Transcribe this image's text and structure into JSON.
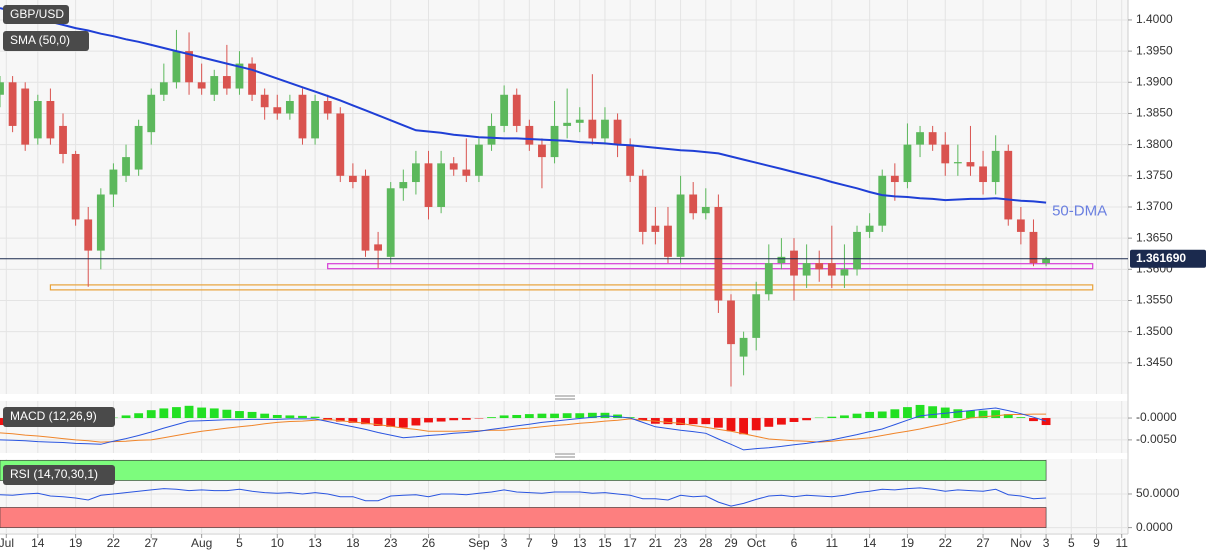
{
  "chart_data": [
    {
      "type": "candlestick",
      "title": "GBP/USD",
      "indicator": "SMA (50,0)",
      "annotation": "50-DMA",
      "xlim": [
        0,
        89.5
      ],
      "ylim": [
        1.34,
        1.4032
      ],
      "yticks": [
        {
          "value": 1.4,
          "label": "1.4000"
        },
        {
          "value": 1.395,
          "label": "1.3950"
        },
        {
          "value": 1.39,
          "label": "1.3900"
        },
        {
          "value": 1.385,
          "label": "1.3850"
        },
        {
          "value": 1.38,
          "label": "1.3800"
        },
        {
          "value": 1.375,
          "label": "1.3750"
        },
        {
          "value": 1.37,
          "label": "1.3700"
        },
        {
          "value": 1.365,
          "label": "1.3650"
        },
        {
          "value": 1.36,
          "label": "1.3600"
        },
        {
          "value": 1.355,
          "label": "1.3550"
        },
        {
          "value": 1.35,
          "label": "1.3500"
        },
        {
          "value": 1.345,
          "label": "1.3450"
        }
      ],
      "up_color": "#5cb85c",
      "down_color": "#d9534f",
      "grid": true,
      "open": [
        1.388,
        1.39,
        1.389,
        1.381,
        1.387,
        1.383,
        1.3785,
        1.368,
        1.363,
        1.372,
        1.375,
        1.376,
        1.382,
        1.388,
        1.39,
        1.395,
        1.39,
        1.388,
        1.391,
        1.389,
        1.393,
        1.388,
        1.386,
        1.385,
        1.388,
        1.381,
        1.387,
        1.385,
        1.375,
        1.375,
        1.364,
        1.362,
        1.373,
        1.374,
        1.377,
        1.37,
        1.377,
        1.376,
        1.375,
        1.38,
        1.383,
        1.388,
        1.383,
        1.38,
        1.378,
        1.383,
        1.3835,
        1.384,
        1.381,
        1.384,
        1.38,
        1.375,
        1.367,
        1.367,
        1.362,
        1.372,
        1.369,
        1.37,
        1.355,
        1.346,
        1.349,
        1.356,
        1.361,
        1.363,
        1.359,
        1.361,
        1.361,
        1.359,
        1.36,
        1.366,
        1.367,
        1.375,
        1.374,
        1.38,
        1.382,
        1.38,
        1.377,
        1.3772,
        1.3765,
        1.374,
        1.379,
        1.368,
        1.366,
        1.361
      ],
      "high": [
        1.391,
        1.391,
        1.39,
        1.388,
        1.389,
        1.385,
        1.379,
        1.37,
        1.373,
        1.377,
        1.38,
        1.384,
        1.389,
        1.393,
        1.3984,
        1.398,
        1.393,
        1.392,
        1.396,
        1.395,
        1.394,
        1.389,
        1.388,
        1.388,
        1.389,
        1.388,
        1.388,
        1.386,
        1.377,
        1.376,
        1.366,
        1.374,
        1.376,
        1.379,
        1.379,
        1.379,
        1.378,
        1.381,
        1.381,
        1.385,
        1.3895,
        1.389,
        1.384,
        1.381,
        1.387,
        1.389,
        1.386,
        1.3913,
        1.386,
        1.385,
        1.381,
        1.376,
        1.37,
        1.37,
        1.375,
        1.374,
        1.373,
        1.372,
        1.356,
        1.35,
        1.358,
        1.364,
        1.365,
        1.365,
        1.364,
        1.363,
        1.367,
        1.364,
        1.367,
        1.369,
        1.376,
        1.377,
        1.3834,
        1.383,
        1.383,
        1.382,
        1.38,
        1.383,
        1.379,
        1.3815,
        1.38,
        1.37,
        1.368,
        1.362
      ],
      "low": [
        1.386,
        1.382,
        1.379,
        1.38,
        1.38,
        1.377,
        1.367,
        1.3572,
        1.36,
        1.37,
        1.374,
        1.375,
        1.38,
        1.387,
        1.389,
        1.388,
        1.388,
        1.387,
        1.388,
        1.388,
        1.387,
        1.384,
        1.384,
        1.384,
        1.38,
        1.38,
        1.384,
        1.374,
        1.373,
        1.362,
        1.3602,
        1.361,
        1.371,
        1.372,
        1.368,
        1.369,
        1.375,
        1.374,
        1.374,
        1.379,
        1.382,
        1.382,
        1.379,
        1.373,
        1.377,
        1.381,
        1.382,
        1.38,
        1.38,
        1.378,
        1.374,
        1.364,
        1.364,
        1.361,
        1.361,
        1.368,
        1.368,
        1.353,
        1.3412,
        1.343,
        1.347,
        1.355,
        1.36,
        1.355,
        1.357,
        1.358,
        1.357,
        1.357,
        1.359,
        1.365,
        1.366,
        1.371,
        1.373,
        1.378,
        1.379,
        1.375,
        1.375,
        1.375,
        1.372,
        1.372,
        1.367,
        1.364,
        1.3605,
        1.3605
      ],
      "close": [
        1.39,
        1.383,
        1.38,
        1.387,
        1.381,
        1.3785,
        1.368,
        1.363,
        1.372,
        1.376,
        1.378,
        1.383,
        1.388,
        1.39,
        1.395,
        1.39,
        1.389,
        1.391,
        1.389,
        1.393,
        1.388,
        1.386,
        1.385,
        1.387,
        1.381,
        1.387,
        1.385,
        1.375,
        1.374,
        1.363,
        1.363,
        1.373,
        1.374,
        1.377,
        1.37,
        1.377,
        1.376,
        1.375,
        1.38,
        1.383,
        1.388,
        1.383,
        1.38,
        1.378,
        1.383,
        1.3835,
        1.384,
        1.381,
        1.384,
        1.38,
        1.375,
        1.366,
        1.366,
        1.362,
        1.372,
        1.369,
        1.37,
        1.355,
        1.348,
        1.349,
        1.356,
        1.361,
        1.362,
        1.359,
        1.361,
        1.36,
        1.359,
        1.36,
        1.366,
        1.367,
        1.375,
        1.374,
        1.38,
        1.382,
        1.38,
        1.377,
        1.3772,
        1.3765,
        1.374,
        1.379,
        1.368,
        1.366,
        1.361,
        1.3617
      ],
      "sma": {
        "color": "#1f3fd6",
        "values": [
          1.4019,
          1.4014,
          1.4008,
          1.4003,
          1.3997,
          1.3992,
          1.3987,
          1.3983,
          1.3978,
          1.3974,
          1.3969,
          1.3965,
          1.396,
          1.3955,
          1.395,
          1.3945,
          1.394,
          1.3935,
          1.393,
          1.3925,
          1.392,
          1.3913,
          1.3906,
          1.3899,
          1.3892,
          1.3885,
          1.3878,
          1.3871,
          1.3863,
          1.3855,
          1.3847,
          1.3839,
          1.3831,
          1.3823,
          1.3821,
          1.3819,
          1.3816,
          1.3814,
          1.3812,
          1.3811,
          1.381,
          1.381,
          1.3809,
          1.3808,
          1.3807,
          1.3806,
          1.3804,
          1.3803,
          1.3802,
          1.38,
          1.3799,
          1.3797,
          1.3795,
          1.3793,
          1.3791,
          1.379,
          1.3788,
          1.3786,
          1.3781,
          1.3776,
          1.3771,
          1.3766,
          1.3761,
          1.3756,
          1.3751,
          1.3746,
          1.374,
          1.3735,
          1.373,
          1.3724,
          1.3719,
          1.3717,
          1.3716,
          1.3714,
          1.3713,
          1.3711,
          1.3712,
          1.3713,
          1.3713,
          1.3714,
          1.3712,
          1.371,
          1.3709,
          1.3707
        ]
      },
      "zones": [
        {
          "color": "#d63bd6",
          "range": [
            1.3601,
            1.3609
          ],
          "x": [
            26,
            86.7
          ]
        },
        {
          "color": "#e8a23a",
          "range": [
            1.3567,
            1.3575
          ],
          "x": [
            4,
            86.7
          ]
        }
      ],
      "last_price": {
        "value": 1.36169,
        "label": "1.361690",
        "color": "#1b2a4e"
      }
    },
    {
      "type": "macd",
      "title": "MACD (12,26,9)",
      "xlim": [
        0,
        89.5
      ],
      "ylim": [
        -0.008,
        0.0039
      ],
      "yticks": [
        {
          "value": 0,
          "label": "-0.0000"
        },
        {
          "value": -0.005,
          "label": "-0.0050"
        }
      ],
      "up_color": "#22e022",
      "down_color": "#ee1111",
      "macd_color": "#2a55e0",
      "signal_color": "#f0852a",
      "histogram": [
        -0.0016,
        -0.0015,
        -0.0013,
        -0.0013,
        -0.0011,
        -0.0009,
        -0.0008,
        -0.0007,
        -0.0005,
        0.0001,
        0.0006,
        0.0011,
        0.0018,
        0.0022,
        0.0025,
        0.0028,
        0.0024,
        0.0022,
        0.0019,
        0.0016,
        0.0014,
        0.001,
        0.0007,
        0.0006,
        0.0005,
        0.0003,
        -0.0005,
        -0.0008,
        -0.0011,
        -0.0014,
        -0.0018,
        -0.002,
        -0.0022,
        -0.0017,
        -0.001,
        -0.0008,
        -0.0005,
        -0.0004,
        -0.0001,
        0.0002,
        0.0006,
        0.0007,
        0.0009,
        0.001,
        0.001,
        0.0011,
        0.0011,
        0.0012,
        0.0012,
        0.0008,
        0.0002,
        -0.0005,
        -0.0013,
        -0.0014,
        -0.0016,
        -0.0014,
        -0.0014,
        -0.0022,
        -0.003,
        -0.0037,
        -0.0028,
        -0.002,
        -0.0015,
        -0.0009,
        -0.0005,
        0.0001,
        0.0003,
        0.0006,
        0.001,
        0.0014,
        0.0015,
        0.002,
        0.0025,
        0.003,
        0.0027,
        0.0024,
        0.002,
        0.0017,
        0.0017,
        0.0018,
        0.0009,
        0.0002,
        -0.0007,
        -0.0016
      ],
      "macd": [
        -0.005,
        -0.0051,
        -0.0052,
        -0.0054,
        -0.0055,
        -0.0056,
        -0.0058,
        -0.0059,
        -0.006,
        -0.0053,
        -0.0047,
        -0.004,
        -0.0032,
        -0.0023,
        -0.0015,
        -0.0007,
        -0.0006,
        -0.0005,
        -0.0004,
        -0.0004,
        -0.0003,
        -0.0003,
        -0.0003,
        -0.0002,
        -0.0002,
        -0.0002,
        -0.0008,
        -0.0014,
        -0.002,
        -0.0026,
        -0.0033,
        -0.0039,
        -0.0045,
        -0.0043,
        -0.004,
        -0.0038,
        -0.0035,
        -0.0033,
        -0.003,
        -0.0026,
        -0.0022,
        -0.0018,
        -0.0014,
        -0.001,
        -0.0007,
        -0.0004,
        -0.0001,
        0.0002,
        0.0005,
        0.0003,
        0.0,
        -0.001,
        -0.002,
        -0.0024,
        -0.0028,
        -0.0031,
        -0.0035,
        -0.0048,
        -0.006,
        -0.0073,
        -0.007,
        -0.0068,
        -0.0065,
        -0.0061,
        -0.0058,
        -0.0054,
        -0.005,
        -0.0044,
        -0.0038,
        -0.0031,
        -0.0025,
        -0.0015,
        -0.0005,
        0.0005,
        0.0008,
        0.0011,
        0.0014,
        0.0017,
        0.002,
        0.0023,
        0.0017,
        0.001,
        0.0002,
        -0.0007
      ],
      "signal": [
        -0.0034,
        -0.0036,
        -0.0039,
        -0.0041,
        -0.0044,
        -0.0047,
        -0.005,
        -0.0052,
        -0.0055,
        -0.0054,
        -0.0053,
        -0.0051,
        -0.005,
        -0.0045,
        -0.004,
        -0.0035,
        -0.003,
        -0.0027,
        -0.0023,
        -0.002,
        -0.0017,
        -0.0013,
        -0.001,
        -0.0008,
        -0.0007,
        -0.0005,
        -0.0003,
        -0.0006,
        -0.0009,
        -0.0012,
        -0.0015,
        -0.0019,
        -0.0023,
        -0.0026,
        -0.003,
        -0.003,
        -0.003,
        -0.0029,
        -0.0029,
        -0.0028,
        -0.0028,
        -0.0025,
        -0.0023,
        -0.002,
        -0.0017,
        -0.0015,
        -0.0012,
        -0.001,
        -0.0007,
        -0.0005,
        -0.0002,
        -0.0005,
        -0.0007,
        -0.001,
        -0.0012,
        -0.0017,
        -0.0021,
        -0.0026,
        -0.003,
        -0.0036,
        -0.0042,
        -0.0048,
        -0.005,
        -0.0052,
        -0.0053,
        -0.0055,
        -0.0053,
        -0.005,
        -0.0048,
        -0.0045,
        -0.004,
        -0.0035,
        -0.003,
        -0.0025,
        -0.0019,
        -0.0013,
        -0.0006,
        0.0,
        0.0003,
        0.0005,
        0.0008,
        0.0008,
        0.0009,
        0.0009
      ]
    },
    {
      "type": "rsi",
      "title": "RSI (14,70,30,1)",
      "xlim": [
        0,
        89.5
      ],
      "ylim": [
        -8,
        102
      ],
      "yticks": [
        {
          "value": 50,
          "label": "50.0000"
        },
        {
          "value": 0,
          "label": "0.0000"
        }
      ],
      "color": "#2a55e0",
      "bands": [
        {
          "from": 70,
          "to": 100,
          "color": "#7dfc7d",
          "x": [
            0,
            83
          ]
        },
        {
          "from": 0,
          "to": 30,
          "color": "#fd7f7f",
          "x": [
            0,
            83
          ]
        }
      ],
      "values": [
        49,
        48,
        50,
        51,
        47,
        46,
        44,
        41,
        48,
        50,
        52,
        54,
        56,
        58,
        57,
        55,
        56,
        55,
        55,
        57,
        54,
        52,
        51,
        52,
        50,
        52,
        50,
        46,
        46,
        40,
        40,
        47,
        48,
        49,
        46,
        50,
        50,
        49,
        51,
        53,
        56,
        53,
        52,
        51,
        53,
        53,
        53,
        51,
        52,
        50,
        48,
        43,
        43,
        41,
        48,
        46,
        47,
        38,
        32,
        36,
        42,
        47,
        48,
        46,
        48,
        47,
        46,
        48,
        52,
        54,
        57,
        56,
        58,
        59,
        57,
        54,
        56,
        55,
        54,
        57,
        49,
        47,
        43,
        44
      ],
      "xticks": [
        {
          "value": 0.5,
          "label": "Jul"
        },
        {
          "value": 3,
          "label": "14"
        },
        {
          "value": 6,
          "label": "19"
        },
        {
          "value": 9,
          "label": "22"
        },
        {
          "value": 12,
          "label": "27"
        },
        {
          "value": 16,
          "label": "Aug"
        },
        {
          "value": 19,
          "label": "5"
        },
        {
          "value": 22,
          "label": "10"
        },
        {
          "value": 25,
          "label": "13"
        },
        {
          "value": 28,
          "label": "18"
        },
        {
          "value": 31,
          "label": "23"
        },
        {
          "value": 34,
          "label": "26"
        },
        {
          "value": 38,
          "label": "Sep"
        },
        {
          "value": 40,
          "label": "3"
        },
        {
          "value": 42,
          "label": "7"
        },
        {
          "value": 44,
          "label": "9"
        },
        {
          "value": 46,
          "label": "13"
        },
        {
          "value": 48,
          "label": "15"
        },
        {
          "value": 50,
          "label": "17"
        },
        {
          "value": 52,
          "label": "21"
        },
        {
          "value": 54,
          "label": "23"
        },
        {
          "value": 56,
          "label": "28"
        },
        {
          "value": 58,
          "label": "29"
        },
        {
          "value": 60,
          "label": "Oct"
        },
        {
          "value": 63,
          "label": "6"
        },
        {
          "value": 66,
          "label": "11"
        },
        {
          "value": 69,
          "label": "14"
        },
        {
          "value": 72,
          "label": "19"
        },
        {
          "value": 75,
          "label": "22"
        },
        {
          "value": 78,
          "label": "27"
        },
        {
          "value": 81,
          "label": "Nov"
        },
        {
          "value": 83,
          "label": "3"
        },
        {
          "value": 85,
          "label": "5"
        },
        {
          "value": 87,
          "label": "9"
        },
        {
          "value": 89,
          "label": "11"
        }
      ]
    }
  ]
}
